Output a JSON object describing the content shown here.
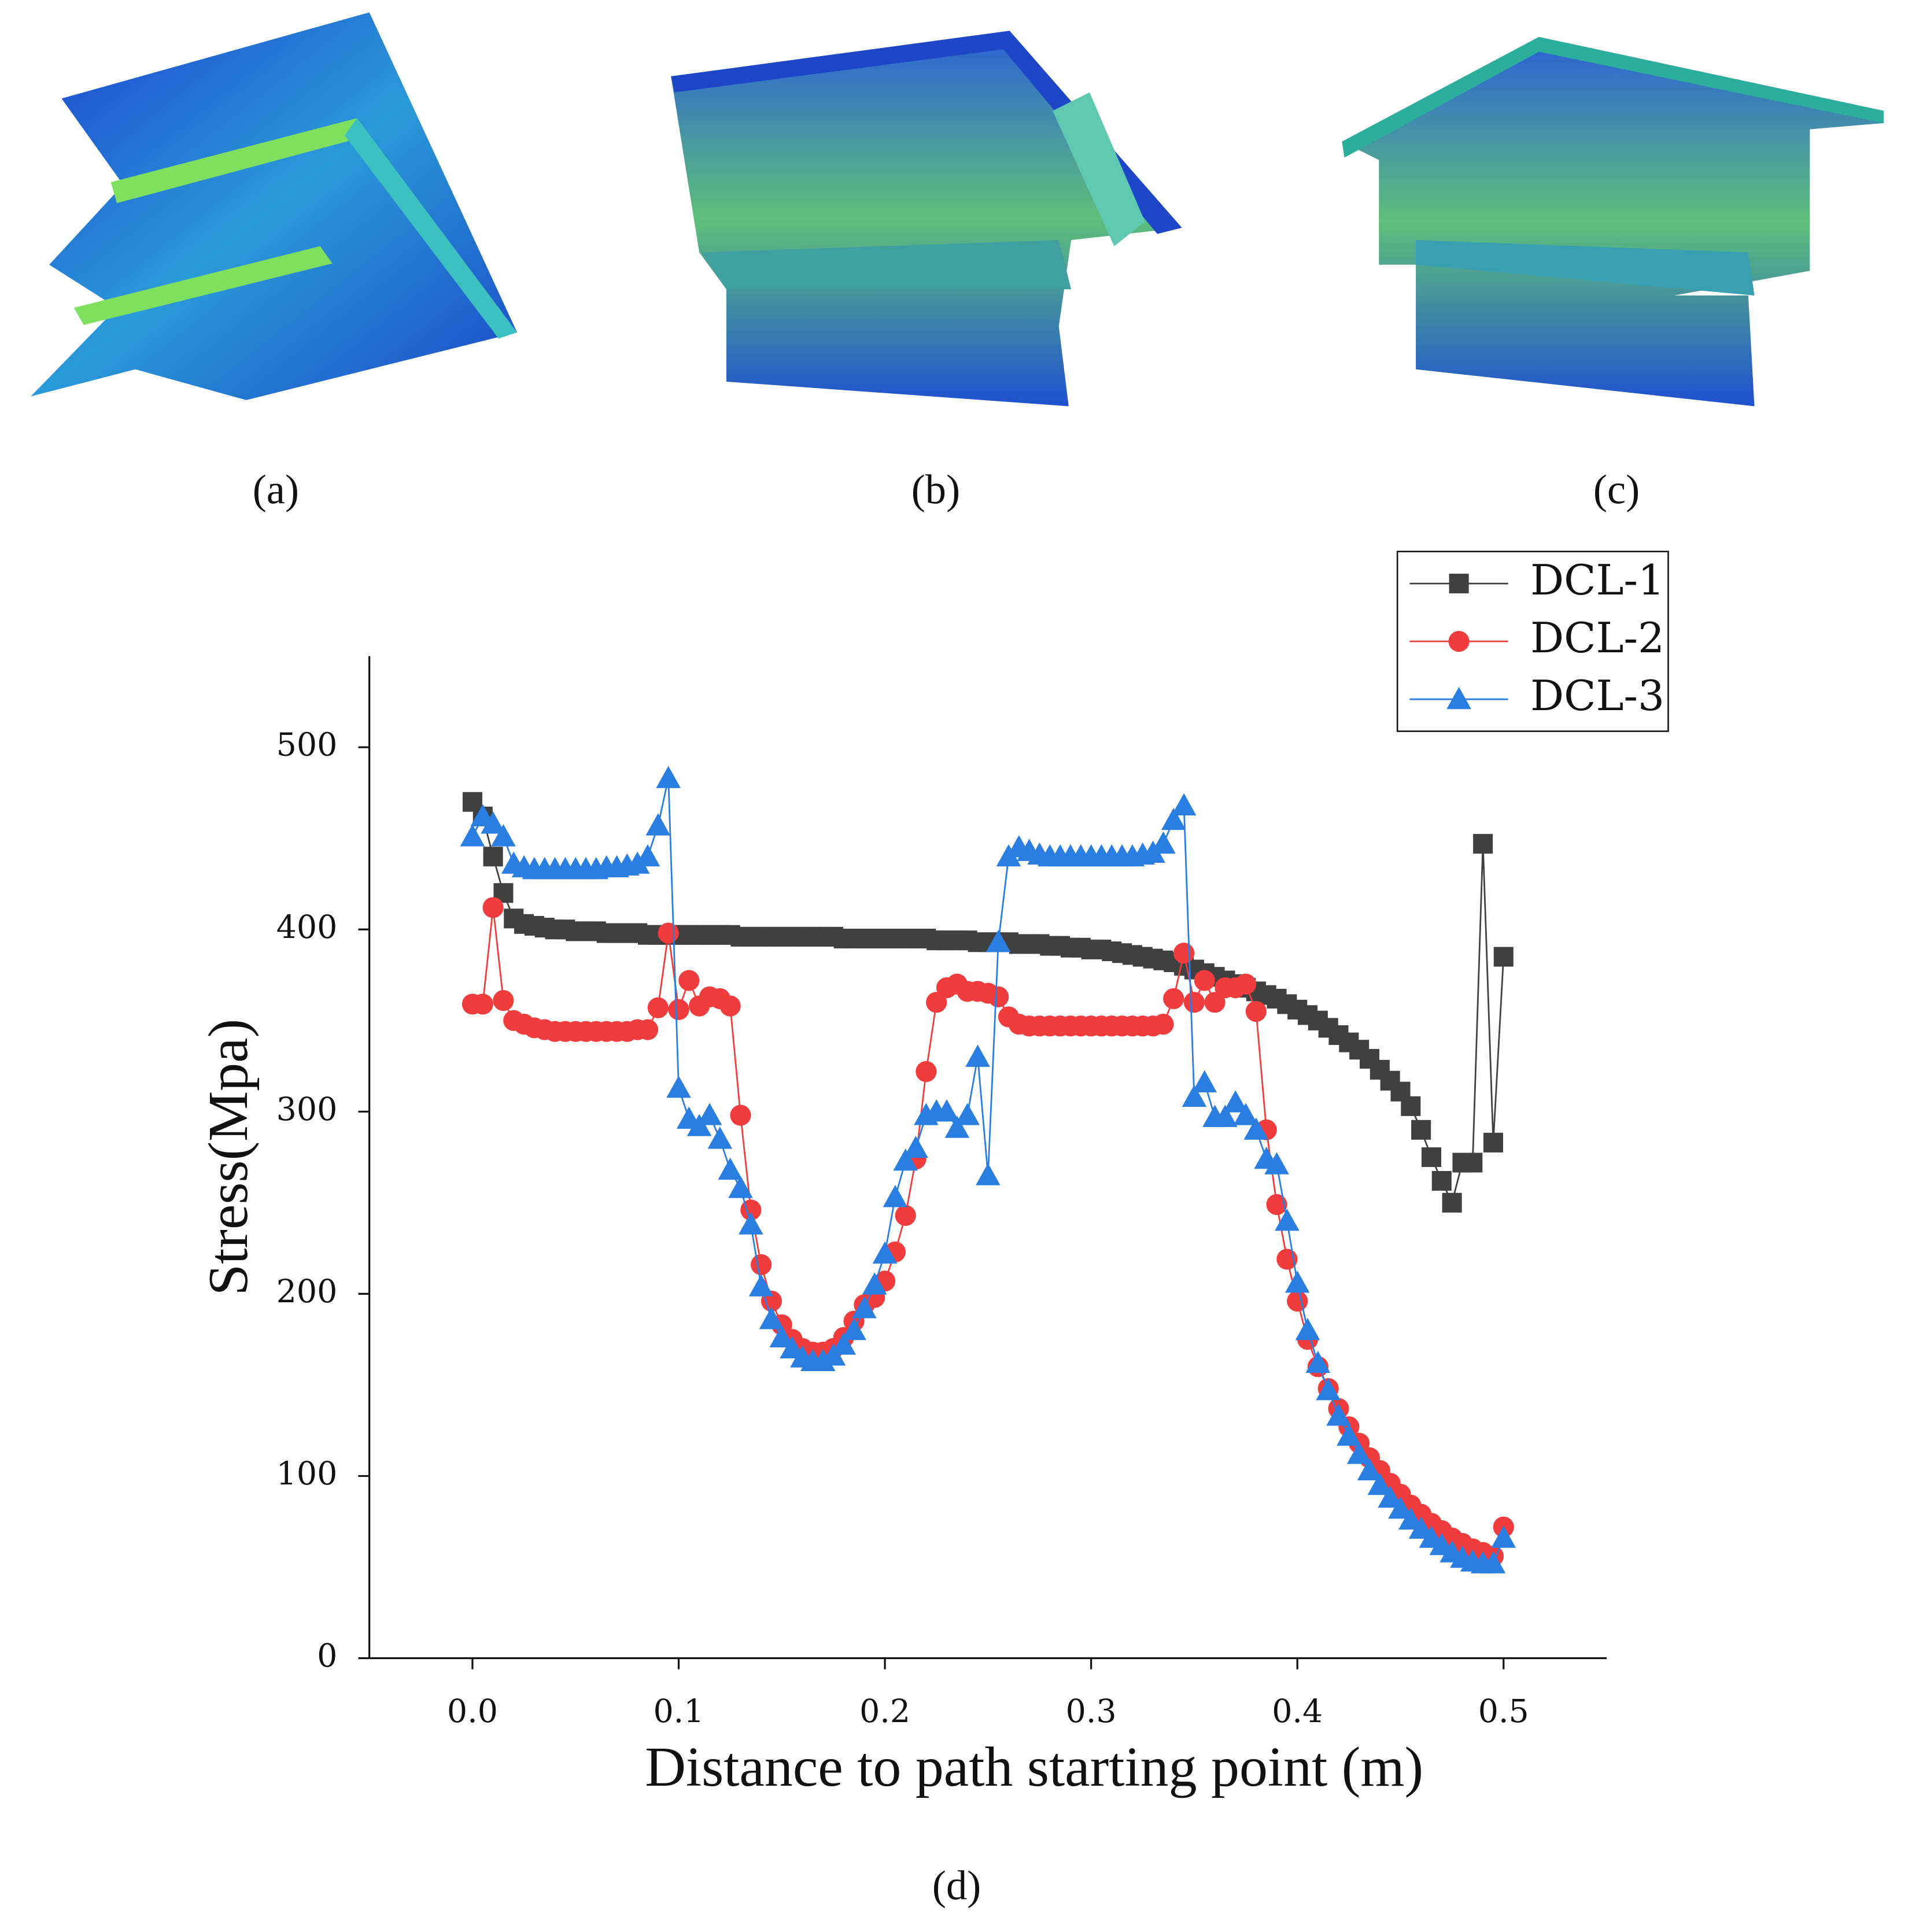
{
  "panel_labels": [
    "(a)",
    "(b)",
    "(c)",
    "(d)"
  ],
  "chart_data": {
    "type": "line",
    "xlabel": "Distance to path starting point (m)",
    "ylabel": "Stress(Mpa)",
    "xlim": [
      -0.05,
      0.55
    ],
    "ylim": [
      0,
      550
    ],
    "xticks": [
      {
        "value": 0,
        "label": "0.0"
      },
      0.1,
      0.2,
      0.3,
      0.4,
      0.5
    ],
    "yticks": [
      0,
      100,
      200,
      300,
      400,
      500
    ],
    "legend": "upper right",
    "x": [
      0,
      0.005,
      0.01,
      0.015,
      0.02,
      0.025,
      0.03,
      0.035,
      0.04,
      0.045,
      0.05,
      0.055,
      0.06,
      0.065,
      0.07,
      0.075,
      0.08,
      0.085,
      0.09,
      0.095,
      0.1,
      0.105,
      0.11,
      0.115,
      0.12,
      0.125,
      0.13,
      0.135,
      0.14,
      0.145,
      0.15,
      0.155,
      0.16,
      0.165,
      0.17,
      0.175,
      0.18,
      0.185,
      0.19,
      0.195,
      0.2,
      0.205,
      0.21,
      0.215,
      0.22,
      0.225,
      0.23,
      0.235,
      0.24,
      0.245,
      0.25,
      0.255,
      0.26,
      0.265,
      0.27,
      0.275,
      0.28,
      0.285,
      0.29,
      0.295,
      0.3,
      0.305,
      0.31,
      0.315,
      0.32,
      0.325,
      0.33,
      0.335,
      0.34,
      0.345,
      0.35,
      0.355,
      0.36,
      0.365,
      0.37,
      0.375,
      0.38,
      0.385,
      0.39,
      0.395,
      0.4,
      0.405,
      0.41,
      0.415,
      0.42,
      0.425,
      0.43,
      0.435,
      0.44,
      0.445,
      0.45,
      0.455,
      0.46,
      0.465,
      0.47,
      0.475,
      0.48,
      0.485,
      0.49,
      0.495,
      0.5
    ],
    "series": [
      {
        "name": "DCL-1",
        "color": "#404040",
        "marker": "square",
        "values": [
          470,
          462,
          440,
          420,
          406,
          403,
          402,
          401,
          400,
          400,
          399,
          399,
          399,
          398,
          398,
          398,
          398,
          397,
          397,
          397,
          397,
          397,
          397,
          397,
          397,
          397,
          396,
          396,
          396,
          396,
          396,
          396,
          396,
          396,
          396,
          396,
          395,
          395,
          395,
          395,
          395,
          395,
          395,
          395,
          395,
          394,
          394,
          394,
          394,
          393,
          393,
          393,
          393,
          392,
          392,
          392,
          391,
          391,
          390,
          390,
          389,
          389,
          388,
          387,
          386,
          385,
          384,
          383,
          382,
          380,
          378,
          376,
          374,
          372,
          370,
          368,
          366,
          364,
          362,
          359,
          356,
          353,
          350,
          346,
          342,
          338,
          334,
          329,
          323,
          317,
          311,
          303,
          290,
          275,
          262,
          250,
          272,
          272,
          447,
          283,
          385
        ]
      },
      {
        "name": "DCL-2",
        "color": "#f03c3c",
        "marker": "circle",
        "values": [
          359,
          359,
          412,
          361,
          350,
          348,
          346,
          345,
          344,
          344,
          344,
          344,
          344,
          344,
          344,
          344,
          345,
          345,
          357,
          398,
          356,
          372,
          358,
          363,
          362,
          358,
          298,
          246,
          216,
          196,
          183,
          175,
          170,
          168,
          168,
          170,
          176,
          185,
          194,
          198,
          207,
          223,
          243,
          274,
          322,
          360,
          368,
          370,
          366,
          366,
          365,
          363,
          352,
          348,
          347,
          347,
          347,
          347,
          347,
          347,
          347,
          347,
          347,
          347,
          347,
          347,
          347,
          348,
          362,
          387,
          360,
          372,
          360,
          368,
          368,
          370,
          355,
          290,
          249,
          219,
          196,
          175,
          160,
          148,
          137,
          127,
          118,
          110,
          103,
          96,
          90,
          84,
          79,
          74,
          70,
          66,
          63,
          60,
          58,
          56,
          72
        ]
      },
      {
        "name": "DCL-3",
        "color": "#2a7de1",
        "marker": "triangle",
        "values": [
          451,
          462,
          458,
          451,
          436,
          434,
          433,
          433,
          433,
          433,
          433,
          433,
          433,
          434,
          434,
          435,
          436,
          440,
          457,
          483,
          313,
          296,
          292,
          298,
          285,
          268,
          258,
          238,
          204,
          186,
          176,
          170,
          165,
          163,
          163,
          166,
          172,
          180,
          192,
          205,
          222,
          253,
          273,
          280,
          298,
          300,
          300,
          291,
          298,
          330,
          265,
          393,
          440,
          445,
          443,
          441,
          440,
          440,
          440,
          440,
          440,
          440,
          440,
          440,
          440,
          441,
          442,
          447,
          460,
          468,
          308,
          316,
          297,
          297,
          305,
          298,
          290,
          274,
          271,
          240,
          206,
          180,
          162,
          147,
          133,
          122,
          112,
          103,
          95,
          88,
          82,
          76,
          71,
          66,
          62,
          58,
          55,
          53,
          52,
          52,
          66
        ]
      }
    ]
  }
}
